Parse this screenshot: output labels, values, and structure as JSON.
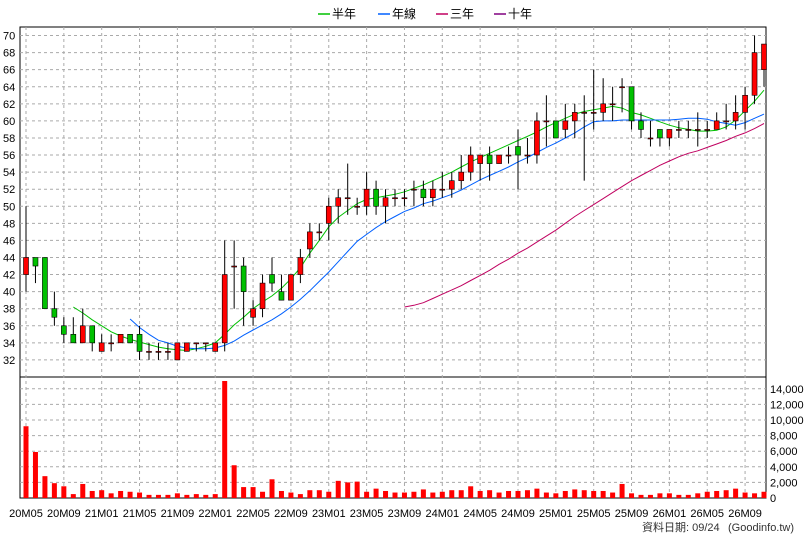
{
  "chart_data": {
    "type": "candlestick",
    "colors": {
      "up": "#ff0000",
      "down": "#00c000",
      "vol": "#ff0000",
      "ma_half": "#00c000",
      "ma_year": "#0060ff",
      "ma_three": "#c00060",
      "ma_ten": "#800080"
    },
    "legend": [
      {
        "key": "ma_half",
        "label": "半年",
        "color": "#00c000"
      },
      {
        "key": "ma_year",
        "label": "年線",
        "color": "#0060ff"
      },
      {
        "key": "ma_three",
        "label": "三年",
        "color": "#c00060"
      },
      {
        "key": "ma_ten",
        "label": "十年",
        "color": "#800080"
      }
    ],
    "price_axis": {
      "min": 30,
      "max": 71,
      "ticks": [
        32,
        34,
        36,
        38,
        40,
        42,
        44,
        46,
        48,
        50,
        52,
        54,
        56,
        58,
        60,
        62,
        64,
        66,
        68,
        70
      ]
    },
    "volume_axis": {
      "min": 0,
      "max": 15000,
      "ticks": [
        0,
        2000,
        4000,
        6000,
        8000,
        10000,
        12000,
        14000
      ],
      "tick_labels": [
        "0",
        "2,000",
        "4,000",
        "6,000",
        "8,000",
        "10,000",
        "12,000",
        "14,000"
      ]
    },
    "x_labels": [
      {
        "idx": 0,
        "label": "20M05"
      },
      {
        "idx": 4,
        "label": "20M09"
      },
      {
        "idx": 8,
        "label": "21M01"
      },
      {
        "idx": 12,
        "label": "21M05"
      },
      {
        "idx": 16,
        "label": "21M09"
      },
      {
        "idx": 20,
        "label": "22M01"
      },
      {
        "idx": 24,
        "label": "22M05"
      },
      {
        "idx": 28,
        "label": "22M09"
      },
      {
        "idx": 32,
        "label": "23M01"
      },
      {
        "idx": 36,
        "label": "23M05"
      },
      {
        "idx": 40,
        "label": "23M09"
      },
      {
        "idx": 44,
        "label": "24M01"
      },
      {
        "idx": 48,
        "label": "24M05"
      },
      {
        "idx": 52,
        "label": "24M09"
      },
      {
        "idx": 56,
        "label": "25M01"
      },
      {
        "idx": 60,
        "label": "25M05"
      },
      {
        "idx": 64,
        "label": "25M09"
      },
      {
        "idx": 68,
        "label": "26M01"
      },
      {
        "idx": 72,
        "label": "26M05"
      },
      {
        "idx": 76,
        "label": "26M09"
      }
    ],
    "ohlc": [
      [
        42,
        50,
        40,
        44
      ],
      [
        44,
        44,
        41,
        43
      ],
      [
        44,
        44,
        38,
        38
      ],
      [
        38,
        40,
        36,
        37
      ],
      [
        36,
        37,
        34,
        35
      ],
      [
        35,
        37,
        34,
        34
      ],
      [
        34,
        38,
        34,
        36
      ],
      [
        36,
        36,
        33,
        34
      ],
      [
        33,
        35,
        33,
        34
      ],
      [
        34,
        35,
        33,
        34
      ],
      [
        34,
        35,
        34,
        35
      ],
      [
        35,
        35,
        34,
        34
      ],
      [
        35,
        36,
        32,
        33
      ],
      [
        33,
        34,
        32,
        33
      ],
      [
        33,
        34,
        32,
        33
      ],
      [
        33,
        34,
        32,
        33
      ],
      [
        32,
        34,
        32,
        34
      ],
      [
        33,
        34,
        33,
        34
      ],
      [
        34,
        34,
        33,
        34
      ],
      [
        34,
        34,
        33,
        34
      ],
      [
        33,
        34,
        33,
        34
      ],
      [
        34,
        46,
        33,
        42
      ],
      [
        43,
        46,
        38,
        43
      ],
      [
        43,
        44,
        36,
        40
      ],
      [
        37,
        39,
        36,
        38
      ],
      [
        38,
        42,
        37,
        41
      ],
      [
        42,
        44,
        40,
        41
      ],
      [
        40,
        42,
        39,
        39
      ],
      [
        39,
        42,
        39,
        42
      ],
      [
        42,
        45,
        41,
        44
      ],
      [
        45,
        48,
        44,
        47
      ],
      [
        47,
        48,
        46,
        47
      ],
      [
        48,
        51,
        46,
        50
      ],
      [
        50,
        52,
        48,
        51
      ],
      [
        51,
        55,
        49,
        51
      ],
      [
        50,
        51,
        49,
        50
      ],
      [
        50,
        54,
        49,
        52
      ],
      [
        52,
        53,
        49,
        50
      ],
      [
        50,
        52,
        48,
        51
      ],
      [
        51,
        52,
        50,
        51
      ],
      [
        51,
        52,
        50,
        51
      ],
      [
        52,
        53,
        50,
        52
      ],
      [
        52,
        53,
        50,
        51
      ],
      [
        51,
        53,
        50,
        52
      ],
      [
        52,
        54,
        51,
        52
      ],
      [
        52,
        54,
        51,
        53
      ],
      [
        53,
        56,
        52,
        54
      ],
      [
        54,
        57,
        53,
        56
      ],
      [
        55,
        56,
        53,
        56
      ],
      [
        56,
        57,
        53,
        55
      ],
      [
        55,
        56,
        55,
        56
      ],
      [
        56,
        57,
        55,
        56
      ],
      [
        57,
        59,
        52,
        56
      ],
      [
        56,
        58,
        55,
        56
      ],
      [
        56,
        61,
        55,
        60
      ],
      [
        60,
        63,
        57,
        60
      ],
      [
        60,
        60,
        58,
        58
      ],
      [
        59,
        62,
        58,
        60
      ],
      [
        60,
        62,
        58,
        61
      ],
      [
        61,
        63,
        53,
        61
      ],
      [
        61,
        66,
        59,
        61
      ],
      [
        61,
        65,
        60,
        62
      ],
      [
        62,
        64,
        60,
        62
      ],
      [
        64,
        65,
        61,
        64
      ],
      [
        64,
        64,
        59,
        60
      ],
      [
        60,
        61,
        58,
        59
      ],
      [
        58,
        60,
        57,
        58
      ],
      [
        59,
        59,
        57,
        58
      ],
      [
        58,
        59,
        57,
        59
      ],
      [
        59,
        60,
        58,
        59
      ],
      [
        59,
        60,
        58,
        59
      ],
      [
        59,
        61,
        57,
        59
      ],
      [
        59,
        60,
        58,
        59
      ],
      [
        59,
        61,
        59,
        60
      ],
      [
        60,
        62,
        59,
        60
      ],
      [
        60,
        63,
        59,
        61
      ],
      [
        61,
        64,
        59,
        63
      ],
      [
        63,
        70,
        62,
        68
      ],
      [
        66,
        69,
        64,
        69
      ]
    ],
    "volume": [
      9200,
      5900,
      2800,
      1900,
      1500,
      500,
      1800,
      900,
      1000,
      600,
      900,
      800,
      700,
      400,
      400,
      400,
      600,
      400,
      500,
      400,
      500,
      15000,
      4200,
      1400,
      1400,
      800,
      2400,
      900,
      700,
      500,
      1000,
      1000,
      800,
      2200,
      2000,
      2100,
      800,
      1200,
      900,
      700,
      700,
      800,
      1100,
      700,
      800,
      1000,
      1000,
      1500,
      900,
      1000,
      700,
      900,
      900,
      1000,
      1200,
      700,
      600,
      900,
      1100,
      1000,
      900,
      900,
      700,
      1800,
      600,
      400,
      400,
      600,
      600,
      400,
      400,
      600,
      800,
      900,
      1000,
      1200,
      700,
      600,
      800
    ],
    "ma_half": [
      null,
      null,
      null,
      null,
      null,
      38.2,
      37.5,
      36.7,
      36.0,
      35.3,
      34.8,
      34.4,
      34.1,
      33.8,
      33.5,
      33.3,
      33.2,
      33.1,
      33.3,
      33.6,
      34.0,
      35.0,
      36.1,
      37.0,
      38.0,
      38.8,
      39.5,
      40.4,
      41.5,
      42.8,
      44.5,
      46.0,
      47.6,
      48.7,
      49.5,
      50.3,
      50.8,
      51.0,
      51.2,
      51.4,
      51.7,
      52.1,
      52.5,
      53.0,
      53.5,
      54.0,
      54.6,
      55.2,
      55.7,
      56.2,
      56.7,
      57.2,
      57.7,
      58.2,
      58.7,
      59.3,
      59.8,
      60.3,
      60.8,
      61.1,
      61.3,
      61.5,
      61.7,
      61.5,
      61.0,
      60.7,
      60.3,
      59.9,
      59.5,
      59.2,
      59.0,
      58.8,
      58.8,
      58.9,
      59.3,
      60.1,
      61.2,
      62.3,
      63.6
    ],
    "ma_year": [
      null,
      null,
      null,
      null,
      null,
      null,
      null,
      null,
      null,
      null,
      null,
      36.8,
      35.8,
      35.0,
      34.3,
      34.0,
      33.6,
      33.4,
      33.3,
      33.3,
      33.4,
      33.7,
      34.2,
      34.9,
      35.5,
      36.1,
      36.7,
      37.4,
      38.2,
      39.1,
      40.1,
      41.2,
      42.3,
      43.5,
      44.7,
      45.9,
      46.7,
      47.5,
      48.2,
      48.8,
      49.4,
      49.8,
      50.3,
      50.6,
      51.0,
      51.4,
      51.9,
      52.5,
      53.1,
      53.6,
      54.1,
      54.6,
      55.2,
      55.7,
      56.3,
      56.9,
      57.4,
      58.0,
      58.6,
      59.3,
      59.9,
      60.0,
      60.0,
      60.1,
      60.1,
      60.1,
      60.1,
      60.1,
      60.1,
      60.2,
      60.3,
      60.3,
      60.2,
      59.9,
      59.7,
      59.5,
      59.8,
      60.3,
      60.8
    ],
    "ma_three": [
      null,
      null,
      null,
      null,
      null,
      null,
      null,
      null,
      null,
      null,
      null,
      null,
      null,
      null,
      null,
      null,
      null,
      null,
      null,
      null,
      null,
      null,
      null,
      null,
      null,
      null,
      null,
      null,
      null,
      null,
      null,
      null,
      null,
      null,
      null,
      null,
      null,
      null,
      null,
      null,
      38.2,
      38.4,
      38.7,
      39.2,
      39.7,
      40.2,
      40.7,
      41.3,
      41.9,
      42.5,
      43.2,
      43.8,
      44.5,
      45.1,
      45.8,
      46.5,
      47.2,
      48.0,
      48.8,
      49.5,
      50.2,
      50.9,
      51.6,
      52.3,
      53.0,
      53.6,
      54.2,
      54.8,
      55.3,
      55.8,
      56.2,
      56.5,
      56.9,
      57.3,
      57.7,
      58.2,
      58.6,
      59.1,
      59.7
    ],
    "footer_text": "資料日期: 09/24",
    "watermark": "(Goodinfo.tw)"
  }
}
